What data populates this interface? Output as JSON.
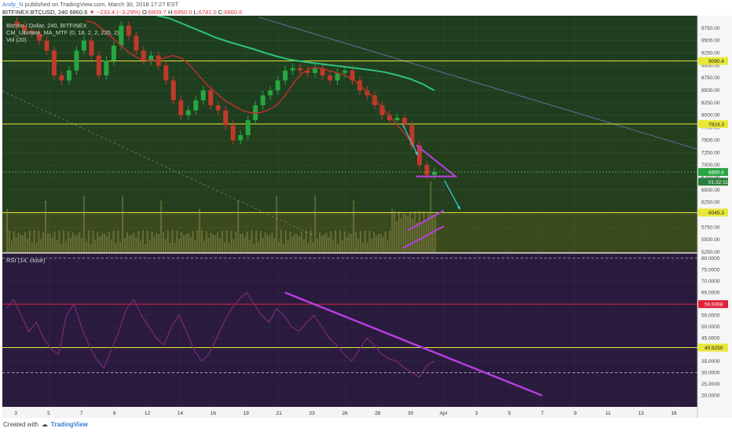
{
  "header": {
    "author": "Andy_N",
    "published_text": "published on TradingView.com, March 30, 2018 17:27 EST",
    "symbol": "BITFINEX:BTCUSD, 240",
    "last": "6860.6",
    "change_arrow": "▼",
    "change": "−233.4 (−3.29%)",
    "o_label": "O:",
    "o_value": "6809.7",
    "h_label": "H:",
    "h_value": "6950.0",
    "l_label": "L:",
    "l_value": "6741.0",
    "c_label": "C:",
    "c_value": "6860.6"
  },
  "legend": {
    "line1": "Bitcoin / Dollar, 240, BITFINEX",
    "line2": "CM_Ultimate_MA_MTF (0, 18, 2, 2, 225, 2)",
    "line3": "Vol (20)",
    "rsi": "RSI (14, close)"
  },
  "footer": {
    "created_with": "Created with",
    "brand": "TradingView"
  },
  "colors": {
    "bull": "#27a641",
    "bear": "#c0392b",
    "sma_fast": "#b3322a",
    "sma_slow": "#2ec27e",
    "level_yellow": "#e8e83a",
    "rsi_red": "#e0203a",
    "trend_purple": "#b640e0",
    "arrow_cyan": "#3ad3e0",
    "volume": "#c0b060",
    "rsi_line": "#7a2a7a"
  },
  "chart_data": [
    {
      "type": "candlestick",
      "title": "Bitcoin / Dollar, 240, BITFINEX",
      "ylim": [
        5250,
        10000
      ],
      "y_ticks": [
        5250,
        5500,
        5750,
        6000,
        6250,
        6500,
        6750,
        7000,
        7250,
        7500,
        7750,
        8000,
        8250,
        8500,
        8750,
        9000,
        9250,
        9500,
        9750
      ],
      "x_tick_labels": [
        "3",
        "5",
        "7",
        "9",
        "12",
        "14",
        "16",
        "19",
        "21",
        "23",
        "26",
        "28",
        "30",
        "Apr",
        "3",
        "5",
        "7",
        "9",
        "11",
        "13",
        "16"
      ],
      "levels": [
        {
          "price": 9090.4,
          "label": "9090.4"
        },
        {
          "price": 7824.3,
          "label": "7824.3"
        },
        {
          "price": 6045.3,
          "label": "6045.3"
        }
      ],
      "price_tags": [
        {
          "price": 6860.6,
          "label": "6860.6"
        },
        {
          "price": 6760,
          "label": "01:32:11"
        }
      ],
      "price_path": [
        9880,
        9800,
        9700,
        9650,
        9500,
        9300,
        8800,
        8700,
        8900,
        9300,
        9500,
        9200,
        8800,
        9100,
        9400,
        9800,
        9600,
        9300,
        9100,
        9200,
        9000,
        8700,
        8300,
        8000,
        8100,
        8300,
        8500,
        8200,
        8100,
        7800,
        7500,
        7600,
        7900,
        8200,
        8400,
        8500,
        8700,
        8900,
        8950,
        8900,
        8850,
        8950,
        8800,
        8700,
        8850,
        8900,
        8700,
        8500,
        8400,
        8200,
        8000,
        7900,
        7950,
        7800,
        7400,
        7000,
        6800,
        6860
      ],
      "sma_fast": [
        9900,
        9850,
        9700,
        9550,
        9400,
        9250,
        9150,
        9100,
        9100,
        9150,
        9200,
        9150,
        9000,
        8800,
        8600,
        8450,
        8300,
        8200,
        8100,
        8050,
        8050,
        8100,
        8200,
        8400,
        8650,
        8850,
        8950,
        8950,
        8900,
        8850,
        8800,
        8700,
        8550,
        8400,
        8200,
        8000,
        7800,
        7600,
        7350
      ],
      "sma_slow": [
        10000,
        9950,
        9850,
        9750,
        9650,
        9550,
        9470,
        9400,
        9330,
        9250,
        9180,
        9120,
        9080,
        9050,
        9020,
        8990,
        8960,
        8930,
        8900,
        8860,
        8800,
        8730,
        8630,
        8500
      ],
      "triangle": [
        [
          6950,
          7400
        ],
        [
          6770,
          6770
        ]
      ],
      "volume_label": "Vol (20)"
    },
    {
      "type": "line",
      "title": "RSI (14, close)",
      "ylim": [
        15,
        82
      ],
      "y_ticks": [
        20,
        25,
        30,
        35,
        40,
        45,
        50,
        55,
        60,
        65,
        70,
        75,
        80
      ],
      "y_tick_labels": [
        "20.0000",
        "25.0000",
        "30.0000",
        "35.0000",
        "40.0000",
        "45.0000",
        "50.0000",
        "55.0000",
        "60.0000",
        "65.0000",
        "70.0000",
        "75.0000",
        "80.0000"
      ],
      "levels": [
        {
          "value": 59.9368,
          "label": "59.9368"
        },
        {
          "value": 40.925,
          "label": "40.9250"
        }
      ],
      "values": [
        58,
        62,
        55,
        48,
        52,
        45,
        40,
        38,
        55,
        60,
        50,
        42,
        36,
        32,
        40,
        48,
        58,
        62,
        55,
        50,
        45,
        42,
        50,
        55,
        48,
        40,
        35,
        38,
        45,
        52,
        58,
        62,
        65,
        60,
        55,
        52,
        58,
        55,
        50,
        48,
        52,
        55,
        50,
        45,
        42,
        38,
        35,
        40,
        45,
        42,
        38,
        36,
        35,
        32,
        30,
        28,
        33,
        35
      ],
      "trendline": [
        65,
        20
      ]
    }
  ]
}
